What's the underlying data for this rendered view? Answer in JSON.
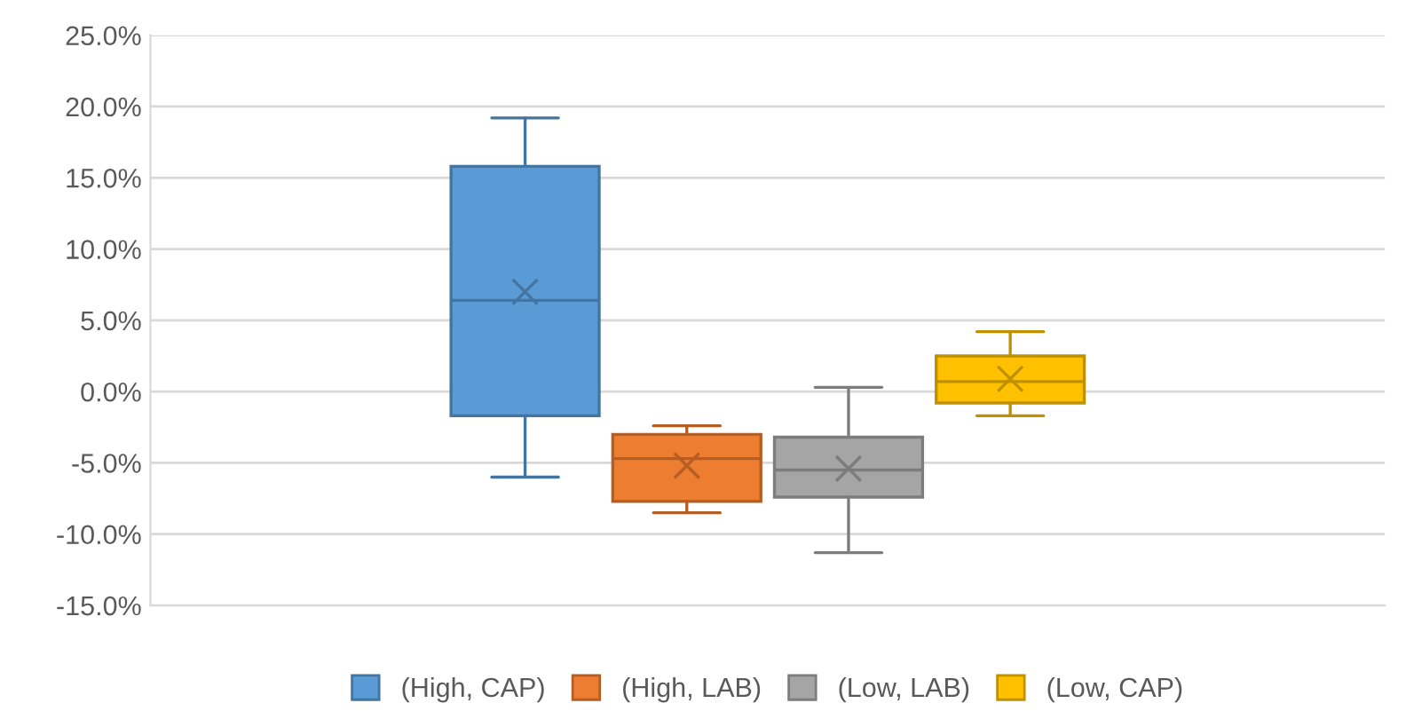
{
  "chart_data": {
    "type": "box",
    "categories": [
      null
    ],
    "series": [
      {
        "name": "(High, CAP)",
        "color": "#5b9bd5",
        "boxes": [
          {
            "low": -6.0,
            "q1": -1.7,
            "median": 6.4,
            "q3": 15.8,
            "high": 19.2,
            "mean": 7.0
          }
        ]
      },
      {
        "name": "(High, LAB)",
        "color": "#ed7d31",
        "boxes": [
          {
            "low": -8.5,
            "q1": -7.7,
            "median": -4.7,
            "q3": -3.0,
            "high": -2.4,
            "mean": -5.2
          }
        ]
      },
      {
        "name": "(Low, LAB)",
        "color": "#a5a5a5",
        "boxes": [
          {
            "low": -11.3,
            "q1": -7.4,
            "median": -5.5,
            "q3": -3.2,
            "high": 0.3,
            "mean": -5.4
          }
        ]
      },
      {
        "name": "(Low, CAP)",
        "color": "#ffc000",
        "boxes": [
          {
            "low": -1.7,
            "q1": -0.8,
            "median": 0.7,
            "q3": 2.5,
            "high": 4.2,
            "mean": 0.9
          }
        ]
      }
    ],
    "ylim": [
      -15,
      25
    ],
    "yticks": [
      {
        "value": -15,
        "label": "-15.0%"
      },
      {
        "value": -10,
        "label": "-10.0%"
      },
      {
        "value": -5,
        "label": "-5.0%"
      },
      {
        "value": 0,
        "label": "0.0%"
      },
      {
        "value": 5,
        "label": "5.0%"
      },
      {
        "value": 10,
        "label": "10.0%"
      },
      {
        "value": 15,
        "label": "15.0%"
      },
      {
        "value": 20,
        "label": "20.0%"
      },
      {
        "value": 25,
        "label": "25.0%"
      }
    ],
    "grid": "y",
    "legend": "bottom",
    "marker": "cross"
  }
}
